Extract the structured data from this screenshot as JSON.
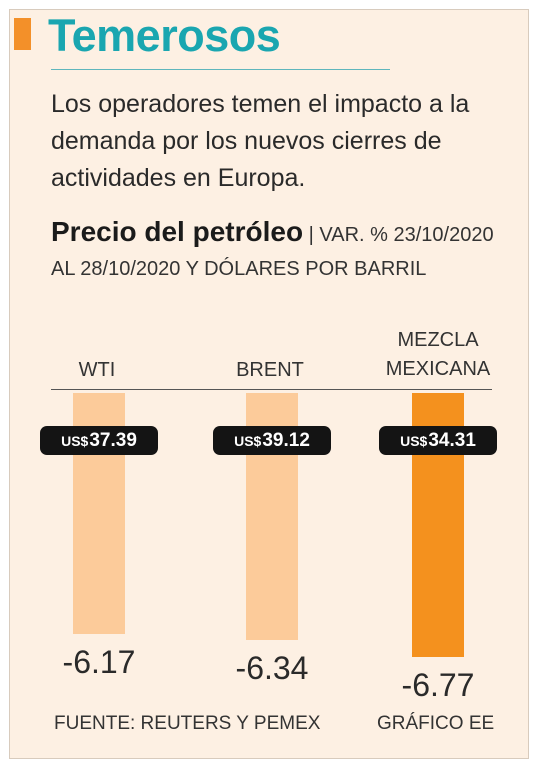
{
  "header": {
    "title": "Temerosos",
    "lede": "Los operadores temen el impacto a la demanda por los nuevos cierres de actividades en Europa."
  },
  "chart_data": {
    "type": "bar",
    "title": "Precio del petróleo",
    "subtitle": "VAR. % 23/10/2020 AL 28/10/2020 Y DÓLARES POR BARRIL",
    "categories": [
      "WTI",
      "BRENT",
      "MEZCLA MEXICANA"
    ],
    "series": [
      {
        "values": [
          -6.17,
          -6.34,
          -6.77
        ]
      }
    ],
    "value_labels": [
      "-6.17",
      "-6.34",
      "-6.77"
    ],
    "price_labels": [
      "US$37.39",
      "US$39.12",
      "US$34.31"
    ],
    "prices_usd": [
      37.39,
      39.12,
      34.31
    ],
    "ylim": [
      -7.3,
      0
    ],
    "colors": [
      "#fccb9a",
      "#fccb9a",
      "#f4911e"
    ],
    "highlight_index": 2,
    "source": "FUENTE: REUTERS Y PEMEX",
    "credit": "GRÁFICO EE"
  },
  "colors": {
    "accent": "#f39029",
    "title": "#1aa6b0",
    "background": "#fdf0e3",
    "pill": "#141414"
  }
}
